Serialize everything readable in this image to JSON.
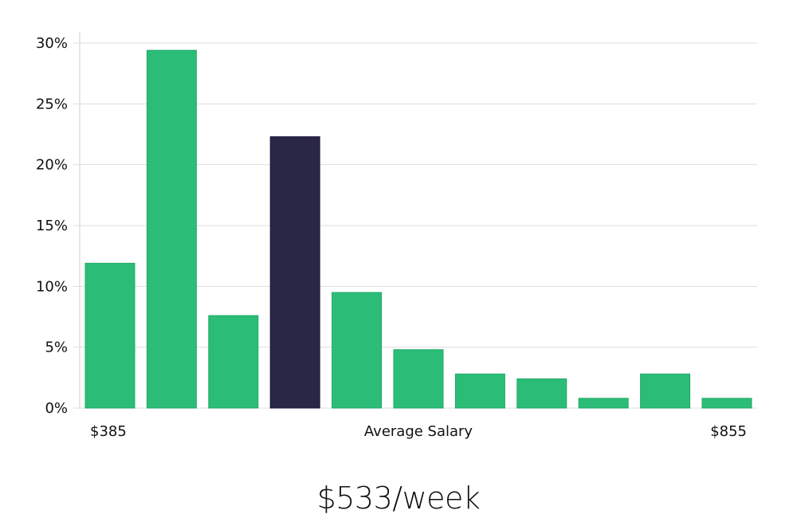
{
  "chart_data": {
    "type": "bar",
    "title": "",
    "x_labels": {
      "left": "$385",
      "center": "Average Salary",
      "right": "$855"
    },
    "y_ticks": [
      "0%",
      "5%",
      "10%",
      "15%",
      "20%",
      "25%",
      "30%"
    ],
    "ylim": [
      0,
      30
    ],
    "y_unit": "%",
    "grid": "horizontal",
    "values": [
      11.9,
      29.4,
      7.6,
      22.3,
      9.5,
      4.8,
      2.8,
      2.4,
      0.8,
      2.8,
      0.8
    ],
    "highlight_index": 3,
    "colors": {
      "bar": "#2bbd77",
      "bar_stroke": "#22a866",
      "highlight": "#2a2646",
      "grid": "#dddddd",
      "axis": "#cccccc"
    }
  },
  "headline": "$533/week"
}
